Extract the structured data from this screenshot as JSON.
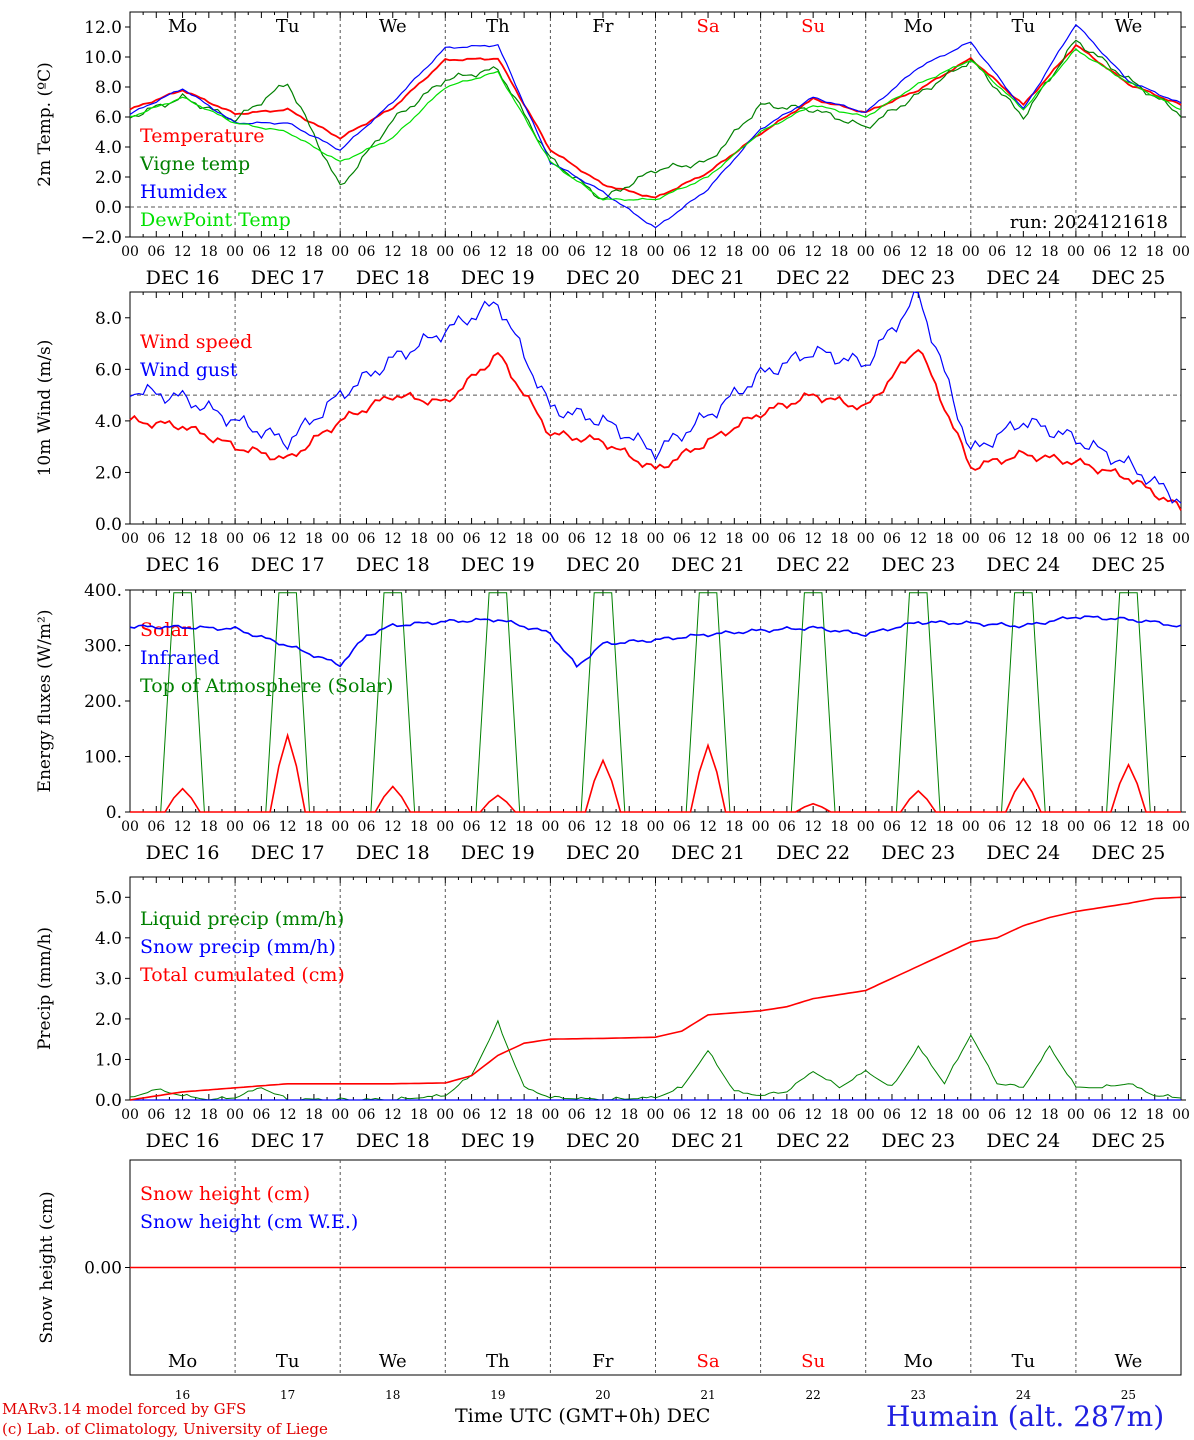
{
  "colors": {
    "red": "#ff0000",
    "green": "#008000",
    "blue": "#0000ff",
    "lightgreen": "#00e000",
    "weekend": "#ff0000",
    "black": "#000000",
    "footer_blue": "#2020e0"
  },
  "days": [
    "Mo",
    "Tu",
    "We",
    "Th",
    "Fr",
    "Sa",
    "Su",
    "Mo",
    "Tu",
    "We"
  ],
  "weekend_days": [
    5,
    6
  ],
  "dates": [
    "DEC 16",
    "DEC 17",
    "DEC 18",
    "DEC 19",
    "DEC 20",
    "DEC 21",
    "DEC 22",
    "DEC 23",
    "DEC 24",
    "DEC 25"
  ],
  "day_numbers": [
    "16",
    "17",
    "18",
    "19",
    "20",
    "21",
    "22",
    "23",
    "24",
    "25"
  ],
  "hour_labels": [
    "00",
    "06",
    "12",
    "18"
  ],
  "hour_label_end": "00",
  "footer": {
    "credit_line1": "MARv3.14 model forced by GFS",
    "credit_line2": "(c) Lab. of Climatology, University of Liege",
    "xaxis_title": "Time UTC (GMT+0h) DEC",
    "station": "Humain (alt. 287m)"
  },
  "chart_data": [
    {
      "type": "line",
      "ylabel": "2m Temp. (ºC)",
      "ylim": [
        -2,
        13
      ],
      "yticks": [
        -2,
        0,
        2,
        4,
        6,
        8,
        10,
        12
      ],
      "ytick_labels": [
        "−2.0",
        "0.0",
        "2.0",
        "4.0",
        "6.0",
        "8.0",
        "10.0",
        "12.0"
      ],
      "ref_line": 0,
      "annotation": "run: 2024121618",
      "x_hours": [
        0,
        12,
        24,
        36,
        48,
        60,
        72,
        84,
        96,
        108,
        120,
        132,
        144,
        156,
        168,
        180,
        192,
        204,
        216,
        228,
        240
      ],
      "series": [
        {
          "name": "Temperature",
          "color": "red",
          "values": [
            6.5,
            7.8,
            6.2,
            6.5,
            4.6,
            6.6,
            9.8,
            9.9,
            3.8,
            1.5,
            0.6,
            2.3,
            4.9,
            7.2,
            6.3,
            7.8,
            9.9,
            6.8,
            10.8,
            8.2,
            6.8
          ]
        },
        {
          "name": "Vigne temp",
          "color": "green",
          "values": [
            6.0,
            7.3,
            5.8,
            8.3,
            1.3,
            5.8,
            8.5,
            9.2,
            3.2,
            0.5,
            2.5,
            3.0,
            6.8,
            6.5,
            5.3,
            7.5,
            9.8,
            6.0,
            11.1,
            8.5,
            6.2
          ]
        },
        {
          "name": "Humidex",
          "color": "blue",
          "values": [
            6.2,
            7.9,
            5.6,
            5.6,
            3.8,
            7.0,
            10.6,
            10.8,
            3.0,
            1.0,
            -1.4,
            1.2,
            5.2,
            7.3,
            6.3,
            9.3,
            11.0,
            6.5,
            12.2,
            8.4,
            6.9
          ]
        },
        {
          "name": "DewPoint Temp",
          "color": "lightgreen",
          "values": [
            6.0,
            7.3,
            5.6,
            5.0,
            3.0,
            4.6,
            8.0,
            9.0,
            3.0,
            0.5,
            0.5,
            2.0,
            5.0,
            6.8,
            6.0,
            8.2,
            9.8,
            6.5,
            10.5,
            8.3,
            6.5
          ]
        }
      ]
    },
    {
      "type": "line",
      "ylabel": "10m Wind (m/s)",
      "ylim": [
        0,
        9
      ],
      "yticks": [
        0,
        2,
        4,
        6,
        8
      ],
      "ytick_labels": [
        "0.0",
        "2.0",
        "4.0",
        "6.0",
        "8.0"
      ],
      "ref_line": 5,
      "x_hours": [
        0,
        12,
        24,
        36,
        48,
        60,
        72,
        84,
        96,
        108,
        120,
        132,
        144,
        156,
        168,
        180,
        192,
        204,
        216,
        228,
        240
      ],
      "series": [
        {
          "name": "Wind speed",
          "color": "red",
          "values": [
            4.0,
            3.8,
            3.0,
            2.5,
            4.0,
            5.0,
            4.7,
            6.6,
            3.5,
            3.2,
            2.1,
            3.2,
            4.3,
            5.0,
            4.5,
            6.9,
            2.2,
            2.7,
            2.4,
            1.8,
            0.6
          ]
        },
        {
          "name": "Wind gust",
          "color": "blue",
          "values": [
            5.2,
            4.9,
            4.0,
            3.2,
            5.0,
            6.4,
            7.5,
            8.6,
            4.5,
            4.0,
            2.8,
            4.2,
            5.8,
            6.7,
            6.2,
            8.9,
            2.8,
            4.0,
            3.3,
            2.3,
            0.9
          ]
        }
      ]
    },
    {
      "type": "line",
      "ylabel": "Energy fluxes (W/m²)",
      "ylim": [
        0,
        400
      ],
      "yticks": [
        0,
        100,
        200,
        300,
        400
      ],
      "ytick_labels": [
        "0.",
        "100.",
        "200.",
        "300.",
        "400."
      ],
      "solar_peaks": [
        42,
        138,
        46,
        30,
        93,
        120,
        15,
        38,
        60,
        85
      ],
      "toa_peak": 395,
      "infrared": {
        "x_hours": [
          0,
          12,
          24,
          36,
          48,
          54,
          60,
          72,
          84,
          96,
          102,
          108,
          120,
          132,
          144,
          156,
          168,
          180,
          192,
          204,
          216,
          228,
          236,
          240
        ],
        "values": [
          334,
          333,
          330,
          300,
          265,
          318,
          336,
          343,
          347,
          322,
          262,
          303,
          310,
          320,
          327,
          332,
          320,
          342,
          340,
          335,
          352,
          347,
          340,
          333
        ]
      },
      "series": [
        {
          "name": "Solar",
          "color": "red"
        },
        {
          "name": "Infrared",
          "color": "blue"
        },
        {
          "name": "Top of Atmosphere (Solar)",
          "color": "green"
        }
      ]
    },
    {
      "type": "line",
      "ylabel": "Precip (mm/h)",
      "ylim": [
        0,
        5.5
      ],
      "yticks": [
        0,
        1,
        2,
        3,
        4,
        5
      ],
      "ytick_labels": [
        "0.0",
        "1.0",
        "2.0",
        "3.0",
        "4.0",
        "5.0"
      ],
      "liquid": {
        "x_hours": [
          0,
          6,
          12,
          18,
          24,
          30,
          36,
          48,
          60,
          72,
          78,
          84,
          90,
          96,
          108,
          120,
          126,
          132,
          138,
          144,
          150,
          156,
          162,
          168,
          174,
          180,
          186,
          192,
          198,
          204,
          210,
          216,
          222,
          228,
          234,
          240
        ],
        "values": [
          0.05,
          0.25,
          0.1,
          0.0,
          0.05,
          0.3,
          0.0,
          0.0,
          0.0,
          0.1,
          0.6,
          1.9,
          0.3,
          0.05,
          0.0,
          0.05,
          0.3,
          1.2,
          0.2,
          0.1,
          0.2,
          0.7,
          0.3,
          0.7,
          0.3,
          1.3,
          0.4,
          1.6,
          0.4,
          0.3,
          1.3,
          0.3,
          0.3,
          0.4,
          0.1,
          0.05
        ]
      },
      "snow": {
        "x_hours": [
          0,
          132,
          240
        ],
        "values": [
          0.0,
          0.0,
          0.0
        ]
      },
      "cumulative": {
        "x_hours": [
          0,
          12,
          24,
          36,
          48,
          60,
          72,
          78,
          84,
          90,
          96,
          108,
          120,
          126,
          132,
          144,
          150,
          156,
          162,
          168,
          174,
          180,
          186,
          192,
          198,
          204,
          210,
          216,
          222,
          228,
          234,
          240
        ],
        "values": [
          0.0,
          0.2,
          0.3,
          0.4,
          0.4,
          0.4,
          0.42,
          0.6,
          1.1,
          1.4,
          1.5,
          1.52,
          1.55,
          1.7,
          2.1,
          2.2,
          2.3,
          2.5,
          2.6,
          2.7,
          3.0,
          3.3,
          3.6,
          3.9,
          4.0,
          4.3,
          4.5,
          4.65,
          4.75,
          4.85,
          4.97,
          5.0
        ]
      },
      "series": [
        {
          "name": "Liquid precip (mm/h)",
          "color": "green"
        },
        {
          "name": "Snow precip (mm/h)",
          "color": "blue"
        },
        {
          "name": "Total cumulated (cm)",
          "color": "red"
        }
      ]
    },
    {
      "type": "line",
      "ylabel": "Snow height (cm)",
      "yticks": [
        0
      ],
      "ytick_labels": [
        "0.00"
      ],
      "series": [
        {
          "name": "Snow height (cm)",
          "color": "red",
          "values": [
            0,
            0
          ]
        },
        {
          "name": "Snow height (cm W.E.)",
          "color": "blue",
          "values": [
            0,
            0
          ]
        }
      ]
    }
  ]
}
